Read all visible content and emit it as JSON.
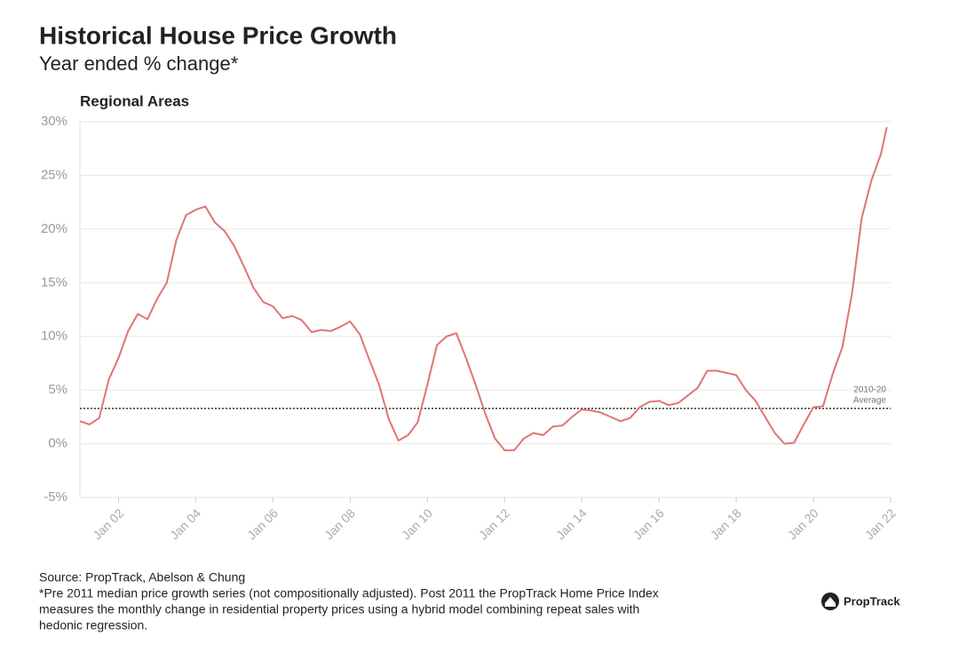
{
  "chart_data": {
    "type": "line",
    "title": "Historical House Price Growth",
    "subtitle": "Year ended % change*",
    "panel_title": "Regional Areas",
    "xlim": [
      2001,
      2022
    ],
    "xticks": [
      {
        "value": 2002,
        "label": "Jan 02"
      },
      {
        "value": 2004,
        "label": "Jan 04"
      },
      {
        "value": 2006,
        "label": "Jan 06"
      },
      {
        "value": 2008,
        "label": "Jan 08"
      },
      {
        "value": 2010,
        "label": "Jan 10"
      },
      {
        "value": 2012,
        "label": "Jan 12"
      },
      {
        "value": 2014,
        "label": "Jan 14"
      },
      {
        "value": 2016,
        "label": "Jan 16"
      },
      {
        "value": 2018,
        "label": "Jan 18"
      },
      {
        "value": 2020,
        "label": "Jan 20"
      },
      {
        "value": 2022,
        "label": "Jan 22"
      }
    ],
    "ylim": [
      -5,
      30
    ],
    "yticks": [
      {
        "value": -5,
        "label": "-5%"
      },
      {
        "value": 0,
        "label": "0%"
      },
      {
        "value": 5,
        "label": "5%"
      },
      {
        "value": 10,
        "label": "10%"
      },
      {
        "value": 15,
        "label": "15%"
      },
      {
        "value": 20,
        "label": "20%"
      },
      {
        "value": 25,
        "label": "25%"
      },
      {
        "value": 30,
        "label": "30%"
      }
    ],
    "grid": true,
    "x": [
      2001,
      2001.25,
      2001.5,
      2001.75,
      2002,
      2002.25,
      2002.5,
      2002.75,
      2003,
      2003.25,
      2003.5,
      2003.75,
      2004,
      2004.25,
      2004.5,
      2004.75,
      2005,
      2005.25,
      2005.5,
      2005.75,
      2006,
      2006.25,
      2006.5,
      2006.75,
      2007,
      2007.25,
      2007.5,
      2007.75,
      2008,
      2008.25,
      2008.5,
      2008.75,
      2009,
      2009.25,
      2009.5,
      2009.75,
      2010,
      2010.25,
      2010.5,
      2010.75,
      2011,
      2011.25,
      2011.5,
      2011.75,
      2012,
      2012.25,
      2012.5,
      2012.75,
      2013,
      2013.25,
      2013.5,
      2013.75,
      2014,
      2014.25,
      2014.5,
      2014.75,
      2015,
      2015.25,
      2015.5,
      2015.75,
      2016,
      2016.25,
      2016.5,
      2016.75,
      2017,
      2017.25,
      2017.5,
      2017.75,
      2018,
      2018.25,
      2018.5,
      2018.75,
      2019,
      2019.25,
      2019.5,
      2019.75,
      2020,
      2020.25,
      2020.5,
      2020.75,
      2021,
      2021.25,
      2021.5,
      2021.75,
      2021.9
    ],
    "series": [
      {
        "name": "Regional Areas",
        "color": "#e07474",
        "values": [
          2.1,
          1.8,
          2.4,
          6,
          8,
          10.5,
          12.1,
          11.6,
          13.5,
          15,
          19,
          21.3,
          21.8,
          22.1,
          20.6,
          19.8,
          18.4,
          16.5,
          14.5,
          13.2,
          12.8,
          11.7,
          11.9,
          11.5,
          10.4,
          10.6,
          10.5,
          10.9,
          11.4,
          10.2,
          7.8,
          5.5,
          2.3,
          0.3,
          0.8,
          2,
          5.5,
          9.2,
          10,
          10.3,
          8,
          5.5,
          2.8,
          0.5,
          -0.6,
          -0.6,
          0.5,
          1,
          0.8,
          1.6,
          1.7,
          2.5,
          3.2,
          3.1,
          2.9,
          2.5,
          2.1,
          2.4,
          3.4,
          3.9,
          4,
          3.6,
          3.8,
          4.5,
          5.2,
          6.8,
          6.8,
          6.6,
          6.4,
          5,
          4,
          2.5,
          1,
          0,
          0.1,
          1.8,
          3.4,
          3.5,
          6.5,
          9,
          14,
          21,
          24.5,
          27,
          29.5
        ]
      }
    ],
    "average": 3.3,
    "average_label": [
      "2010-20",
      "Average"
    ],
    "source": "Source: PropTrack, Abelson & Chung",
    "footnote": [
      "*Pre 2011 median price growth series (not compositionally adjusted). Post 2011 the PropTrack Home Price Index",
      "measures the monthly change in residential property prices using a hybrid model combining repeat sales with",
      "hedonic regression."
    ],
    "logo": "PropTrack"
  }
}
